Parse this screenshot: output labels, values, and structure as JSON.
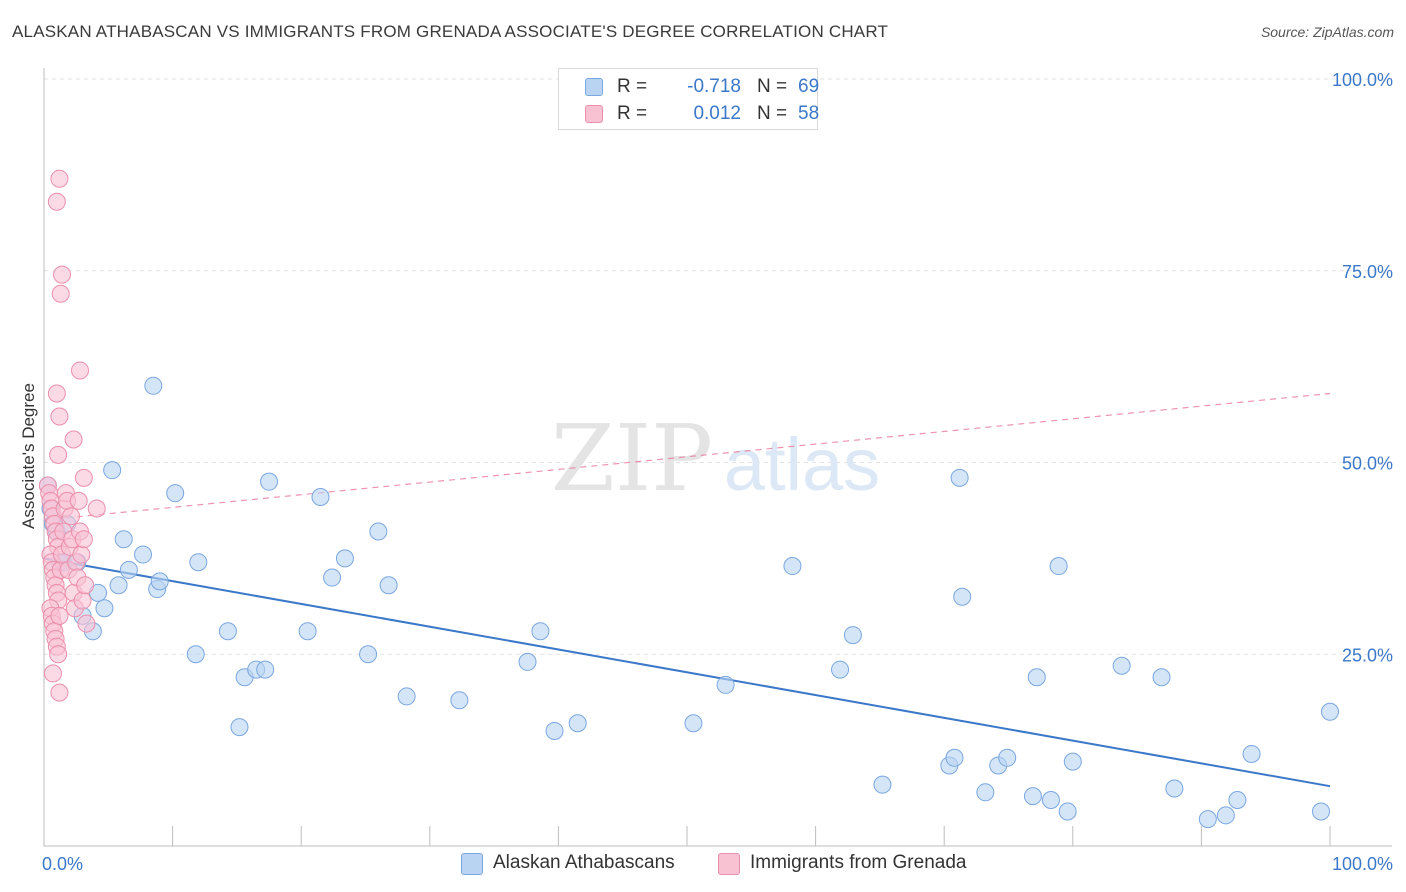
{
  "header": {
    "title": "ALASKAN ATHABASCAN VS IMMIGRANTS FROM GRENADA ASSOCIATE'S DEGREE CORRELATION CHART",
    "source": "Source: ZipAtlas.com"
  },
  "watermark": {
    "zip": "ZIP",
    "atlas": "atlas"
  },
  "legend": {
    "r_label": "R =",
    "n_label": "N =",
    "rows": [
      {
        "r": "-0.718",
        "n": "69",
        "fill": "#b9d3f3",
        "stroke": "#7aa7e0"
      },
      {
        "r": "0.012",
        "n": "58",
        "fill": "#f8c2d3",
        "stroke": "#ec8fab"
      }
    ]
  },
  "chart_data": {
    "type": "scatter",
    "title": "ALASKAN ATHABASCAN VS IMMIGRANTS FROM GRENADA ASSOCIATE'S DEGREE CORRELATION CHART",
    "xlabel": "",
    "ylabel": "Associate's Degree",
    "xlim": [
      0,
      100
    ],
    "ylim": [
      0,
      100
    ],
    "x_tick_labels": [
      "0.0%",
      "100.0%"
    ],
    "y_ticks": [
      25,
      50,
      75,
      100
    ],
    "y_tick_labels": [
      "25.0%",
      "50.0%",
      "75.0%",
      "100.0%"
    ],
    "series": [
      {
        "name": "Alaskan Athabascans",
        "color": "#3b78c9",
        "fill": "#b9d3f3",
        "stroke": "#7aa7e0",
        "trend": {
          "x": [
            0,
            100
          ],
          "y": [
            37.5,
            7.8
          ],
          "style": "solid"
        },
        "points": [
          [
            0.3,
            47
          ],
          [
            0.5,
            44
          ],
          [
            0.7,
            42
          ],
          [
            1,
            41
          ],
          [
            1.2,
            37
          ],
          [
            1.5,
            37
          ],
          [
            1.8,
            42
          ],
          [
            2.6,
            37
          ],
          [
            3,
            30
          ],
          [
            3.8,
            28
          ],
          [
            4.2,
            33
          ],
          [
            4.7,
            31
          ],
          [
            5.3,
            49
          ],
          [
            5.8,
            34
          ],
          [
            6.2,
            40
          ],
          [
            6.6,
            36
          ],
          [
            7.7,
            38
          ],
          [
            8.8,
            33.5
          ],
          [
            9,
            34.5
          ],
          [
            8.5,
            60
          ],
          [
            10.2,
            46
          ],
          [
            11.8,
            25
          ],
          [
            12,
            37
          ],
          [
            14.3,
            28
          ],
          [
            15.2,
            15.5
          ],
          [
            15.6,
            22
          ],
          [
            16.5,
            23
          ],
          [
            17.2,
            23
          ],
          [
            17.5,
            47.5
          ],
          [
            20.5,
            28
          ],
          [
            21.5,
            45.5
          ],
          [
            22.4,
            35
          ],
          [
            23.4,
            37.5
          ],
          [
            25.2,
            25
          ],
          [
            26,
            41
          ],
          [
            26.8,
            34
          ],
          [
            28.2,
            19.5
          ],
          [
            32.3,
            19
          ],
          [
            37.6,
            24
          ],
          [
            38.6,
            28
          ],
          [
            39.7,
            15
          ],
          [
            41.5,
            16
          ],
          [
            50.5,
            16
          ],
          [
            53,
            21
          ],
          [
            58.2,
            36.5
          ],
          [
            61.9,
            23
          ],
          [
            62.9,
            27.5
          ],
          [
            65.2,
            8
          ],
          [
            70.4,
            10.5
          ],
          [
            70.8,
            11.5
          ],
          [
            71.2,
            48
          ],
          [
            71.4,
            32.5
          ],
          [
            73.2,
            7
          ],
          [
            74.2,
            10.5
          ],
          [
            74.9,
            11.5
          ],
          [
            76.9,
            6.5
          ],
          [
            77.2,
            22
          ],
          [
            78.3,
            6
          ],
          [
            78.9,
            36.5
          ],
          [
            79.6,
            4.5
          ],
          [
            80,
            11
          ],
          [
            83.8,
            23.5
          ],
          [
            86.9,
            22
          ],
          [
            87.9,
            7.5
          ],
          [
            90.5,
            3.5
          ],
          [
            91.9,
            4
          ],
          [
            92.8,
            6
          ],
          [
            93.9,
            12
          ],
          [
            99.3,
            4.5
          ],
          [
            100,
            17.5
          ]
        ]
      },
      {
        "name": "Immigrants from Grenada",
        "color": "#e8789c",
        "fill": "#f8c2d3",
        "stroke": "#ec8fab",
        "trend": {
          "x": [
            0,
            100
          ],
          "y": [
            42.5,
            59
          ],
          "style": "dashed"
        },
        "points": [
          [
            0.3,
            47
          ],
          [
            0.4,
            46
          ],
          [
            0.5,
            45
          ],
          [
            0.6,
            44
          ],
          [
            0.7,
            43
          ],
          [
            0.8,
            42
          ],
          [
            0.9,
            41
          ],
          [
            1,
            40
          ],
          [
            1.1,
            39
          ],
          [
            0.5,
            38
          ],
          [
            0.6,
            37
          ],
          [
            0.7,
            36
          ],
          [
            0.8,
            35
          ],
          [
            0.9,
            34
          ],
          [
            1,
            33
          ],
          [
            1.1,
            32
          ],
          [
            0.5,
            31
          ],
          [
            0.6,
            30
          ],
          [
            0.7,
            29
          ],
          [
            0.8,
            28
          ],
          [
            0.9,
            27
          ],
          [
            1,
            26
          ],
          [
            1.1,
            25
          ],
          [
            0.7,
            22.5
          ],
          [
            1.2,
            20
          ],
          [
            1.2,
            30
          ],
          [
            1.3,
            36
          ],
          [
            1.4,
            38
          ],
          [
            1.5,
            41
          ],
          [
            1.6,
            44
          ],
          [
            1.7,
            46
          ],
          [
            1.8,
            45
          ],
          [
            1.9,
            36
          ],
          [
            2,
            39
          ],
          [
            2.1,
            43
          ],
          [
            2.2,
            40
          ],
          [
            2.3,
            33
          ],
          [
            2.4,
            31
          ],
          [
            2.5,
            37
          ],
          [
            2.6,
            35
          ],
          [
            2.7,
            45
          ],
          [
            2.8,
            41
          ],
          [
            2.9,
            38
          ],
          [
            3,
            32
          ],
          [
            3.1,
            40
          ],
          [
            3.2,
            34
          ],
          [
            3.3,
            29
          ],
          [
            1,
            84
          ],
          [
            1.2,
            87
          ],
          [
            1.3,
            72
          ],
          [
            1.4,
            74.5
          ],
          [
            1,
            59
          ],
          [
            1.2,
            56
          ],
          [
            1.1,
            51
          ],
          [
            2.3,
            53
          ],
          [
            2.8,
            62
          ],
          [
            3.1,
            48
          ],
          [
            4.1,
            44
          ]
        ]
      }
    ]
  }
}
